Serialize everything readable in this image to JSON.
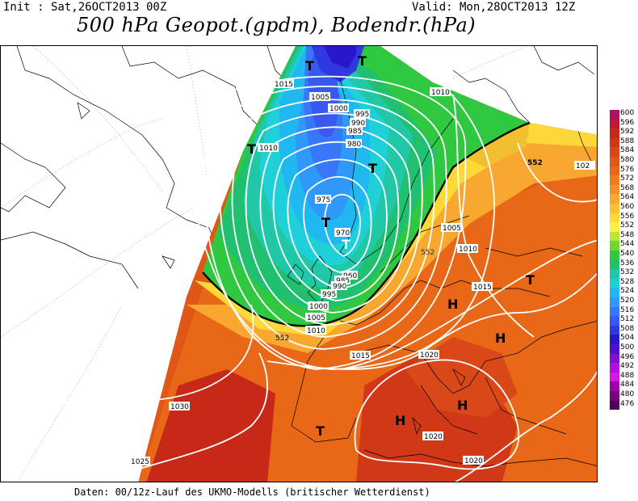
{
  "header": {
    "init": "Init : Sat,26OCT2013 00Z",
    "valid": "Valid: Mon,28OCT2013 12Z",
    "title": "500 hPa Geopot.(gpdm), Bodendr.(hPa)"
  },
  "footer": "Daten: 00/12z-Lauf des UKMO-Modells (britischer Wetterdienst)",
  "legend": {
    "levels": [
      {
        "label": "600",
        "color": "#b01060"
      },
      {
        "label": "596",
        "color": "#c01838"
      },
      {
        "label": "592",
        "color": "#c82818"
      },
      {
        "label": "588",
        "color": "#d03818"
      },
      {
        "label": "584",
        "color": "#d84818"
      },
      {
        "label": "580",
        "color": "#e05818"
      },
      {
        "label": "576",
        "color": "#e86818"
      },
      {
        "label": "572",
        "color": "#f07c20"
      },
      {
        "label": "568",
        "color": "#f49028"
      },
      {
        "label": "564",
        "color": "#f8a830"
      },
      {
        "label": "560",
        "color": "#fcc030"
      },
      {
        "label": "556",
        "color": "#fcd838"
      },
      {
        "label": "552",
        "color": "#fcf040"
      },
      {
        "label": "548",
        "color": "#b8e830"
      },
      {
        "label": "544",
        "color": "#70d830"
      },
      {
        "label": "540",
        "color": "#30c840"
      },
      {
        "label": "536",
        "color": "#20c070"
      },
      {
        "label": "532",
        "color": "#20c8a8"
      },
      {
        "label": "528",
        "color": "#20d0d8"
      },
      {
        "label": "524",
        "color": "#20b8f0"
      },
      {
        "label": "520",
        "color": "#3098f8"
      },
      {
        "label": "516",
        "color": "#3878f8"
      },
      {
        "label": "512",
        "color": "#3858f0"
      },
      {
        "label": "508",
        "color": "#3038e0"
      },
      {
        "label": "504",
        "color": "#2818c8"
      },
      {
        "label": "500",
        "color": "#5010c8"
      },
      {
        "label": "496",
        "color": "#8010d0"
      },
      {
        "label": "492",
        "color": "#b010d8"
      },
      {
        "label": "488",
        "color": "#d818e0"
      },
      {
        "label": "484",
        "color": "#a000a8"
      },
      {
        "label": "480",
        "color": "#780080"
      },
      {
        "label": "476",
        "color": "#500058"
      }
    ]
  },
  "isobar_labels": [
    "1015",
    "1005",
    "1000",
    "995",
    "990",
    "985",
    "980",
    "1010",
    "975",
    "970",
    "960",
    "985",
    "990",
    "995",
    "1000",
    "1005",
    "1010",
    "1015",
    "1005",
    "1010",
    "1015",
    "1020",
    "1010",
    "1030",
    "1025",
    "1020",
    "1020",
    "102"
  ],
  "field_labels": [
    "552",
    "552",
    "552"
  ],
  "systems": [
    "T",
    "T",
    "T",
    "T",
    "T",
    "T",
    "T",
    "T",
    "H",
    "H",
    "H",
    "H"
  ]
}
